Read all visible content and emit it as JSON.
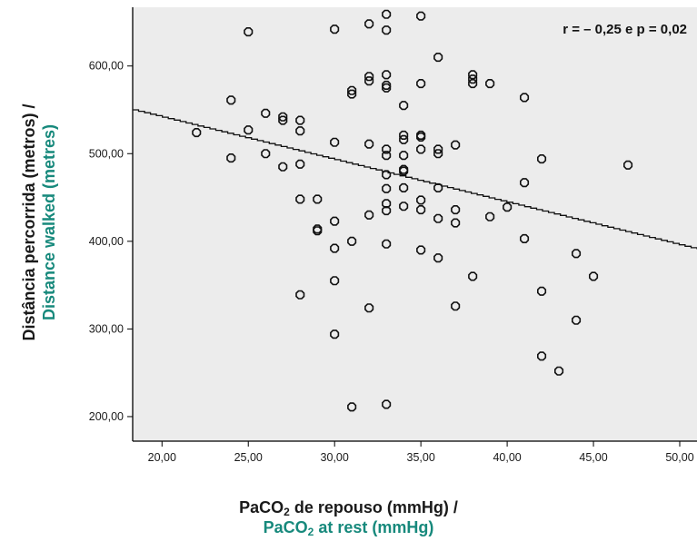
{
  "chart_data": {
    "type": "scatter",
    "xlabel_pt": [
      "PaCO",
      "2",
      " de repouso (mmHg) /"
    ],
    "xlabel_en": [
      "PaCO",
      "2",
      " at rest (mmHg)"
    ],
    "ylabel_pt": "Distância percorrida (metros) /",
    "ylabel_en": "Distance walked (metres)",
    "annotation": "r = – 0,25 e p = 0,02",
    "xlim": [
      18.3,
      51.0
    ],
    "ylim": [
      172,
      667
    ],
    "xticks": [
      20,
      25,
      30,
      35,
      40,
      45,
      50
    ],
    "xtick_labels": [
      "20,00",
      "25,00",
      "30,00",
      "35,00",
      "40,00",
      "45,00",
      "50,00"
    ],
    "yticks": [
      200,
      300,
      400,
      500,
      600
    ],
    "ytick_labels": [
      "200,00",
      "300,00",
      "400,00",
      "500,00",
      "600,00"
    ],
    "grid": false,
    "fit_line": {
      "x": [
        18.3,
        51.0
      ],
      "y": [
        550,
        391
      ]
    },
    "points": [
      {
        "x": 22,
        "y": 524
      },
      {
        "x": 24,
        "y": 561
      },
      {
        "x": 24,
        "y": 495
      },
      {
        "x": 25,
        "y": 639
      },
      {
        "x": 25,
        "y": 527
      },
      {
        "x": 26,
        "y": 546
      },
      {
        "x": 26,
        "y": 500
      },
      {
        "x": 27,
        "y": 542
      },
      {
        "x": 27,
        "y": 538
      },
      {
        "x": 27,
        "y": 485
      },
      {
        "x": 28,
        "y": 538
      },
      {
        "x": 28,
        "y": 526
      },
      {
        "x": 28,
        "y": 488
      },
      {
        "x": 28,
        "y": 448
      },
      {
        "x": 28,
        "y": 339
      },
      {
        "x": 29,
        "y": 448
      },
      {
        "x": 29,
        "y": 414
      },
      {
        "x": 29,
        "y": 412
      },
      {
        "x": 30,
        "y": 642
      },
      {
        "x": 30,
        "y": 513
      },
      {
        "x": 30,
        "y": 423
      },
      {
        "x": 30,
        "y": 392
      },
      {
        "x": 30,
        "y": 355
      },
      {
        "x": 30,
        "y": 294
      },
      {
        "x": 31,
        "y": 572
      },
      {
        "x": 31,
        "y": 568
      },
      {
        "x": 31,
        "y": 400
      },
      {
        "x": 31,
        "y": 211
      },
      {
        "x": 32,
        "y": 648
      },
      {
        "x": 32,
        "y": 588
      },
      {
        "x": 32,
        "y": 583
      },
      {
        "x": 32,
        "y": 511
      },
      {
        "x": 32,
        "y": 430
      },
      {
        "x": 32,
        "y": 324
      },
      {
        "x": 33,
        "y": 659
      },
      {
        "x": 33,
        "y": 641
      },
      {
        "x": 33,
        "y": 590
      },
      {
        "x": 33,
        "y": 578
      },
      {
        "x": 33,
        "y": 575
      },
      {
        "x": 33,
        "y": 505
      },
      {
        "x": 33,
        "y": 498
      },
      {
        "x": 33,
        "y": 476
      },
      {
        "x": 33,
        "y": 460
      },
      {
        "x": 33,
        "y": 443
      },
      {
        "x": 33,
        "y": 435
      },
      {
        "x": 33,
        "y": 397
      },
      {
        "x": 33,
        "y": 214
      },
      {
        "x": 34,
        "y": 555
      },
      {
        "x": 34,
        "y": 521
      },
      {
        "x": 34,
        "y": 516
      },
      {
        "x": 34,
        "y": 498
      },
      {
        "x": 34,
        "y": 482
      },
      {
        "x": 34,
        "y": 480
      },
      {
        "x": 34,
        "y": 461
      },
      {
        "x": 34,
        "y": 440
      },
      {
        "x": 35,
        "y": 657
      },
      {
        "x": 35,
        "y": 580
      },
      {
        "x": 35,
        "y": 521
      },
      {
        "x": 35,
        "y": 519
      },
      {
        "x": 35,
        "y": 505
      },
      {
        "x": 35,
        "y": 447
      },
      {
        "x": 35,
        "y": 436
      },
      {
        "x": 35,
        "y": 390
      },
      {
        "x": 36,
        "y": 610
      },
      {
        "x": 36,
        "y": 505
      },
      {
        "x": 36,
        "y": 500
      },
      {
        "x": 36,
        "y": 461
      },
      {
        "x": 36,
        "y": 426
      },
      {
        "x": 36,
        "y": 381
      },
      {
        "x": 37,
        "y": 510
      },
      {
        "x": 37,
        "y": 436
      },
      {
        "x": 37,
        "y": 421
      },
      {
        "x": 37,
        "y": 326
      },
      {
        "x": 38,
        "y": 590
      },
      {
        "x": 38,
        "y": 585
      },
      {
        "x": 38,
        "y": 580
      },
      {
        "x": 38,
        "y": 360
      },
      {
        "x": 39,
        "y": 580
      },
      {
        "x": 39,
        "y": 428
      },
      {
        "x": 40,
        "y": 439
      },
      {
        "x": 41,
        "y": 564
      },
      {
        "x": 41,
        "y": 467
      },
      {
        "x": 41,
        "y": 403
      },
      {
        "x": 42,
        "y": 494
      },
      {
        "x": 42,
        "y": 343
      },
      {
        "x": 42,
        "y": 269
      },
      {
        "x": 43,
        "y": 252
      },
      {
        "x": 44,
        "y": 386
      },
      {
        "x": 44,
        "y": 310
      },
      {
        "x": 45,
        "y": 360
      },
      {
        "x": 47,
        "y": 487
      }
    ]
  }
}
